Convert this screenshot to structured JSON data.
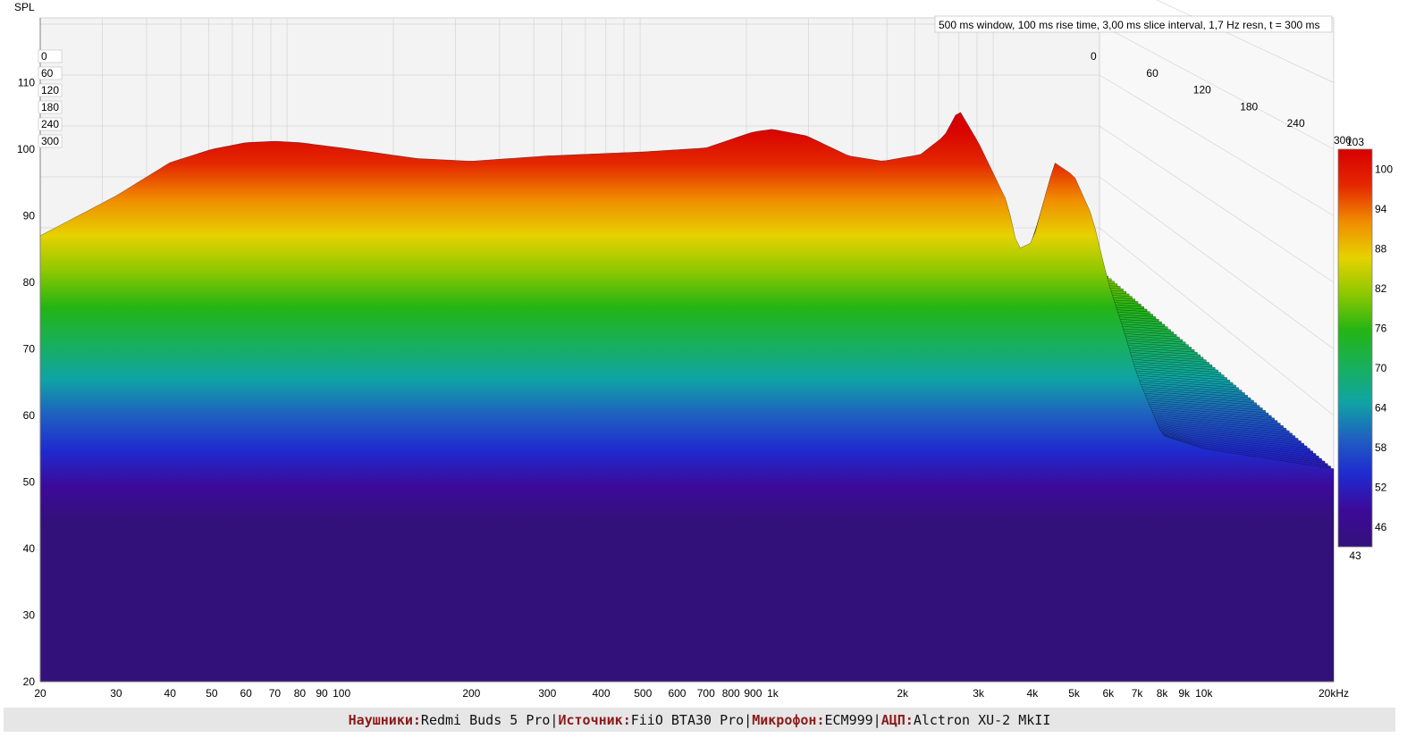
{
  "chart_data": {
    "type": "waterfall",
    "y_label": "SPL",
    "settings_text": "500 ms window, 100 ms rise time, 3,00 ms slice interval, 1,7 Hz resn, t = 300 ms",
    "y_axis": {
      "min": 20,
      "max": 115,
      "ticks": [
        "20",
        "30",
        "40",
        "50",
        "60",
        "70",
        "80",
        "90",
        "100",
        "110"
      ]
    },
    "x_axis": {
      "scale": "log",
      "min": 20,
      "max": 20000,
      "tick_labels": [
        "20",
        "30",
        "40",
        "50",
        "60",
        "70",
        "80",
        "90",
        "100",
        "200",
        "300",
        "400",
        "500",
        "600",
        "700",
        "800",
        "900",
        "1k",
        "2k",
        "3k",
        "4k",
        "5k",
        "6k",
        "7k",
        "8k",
        "9k",
        "10k",
        "20kHz"
      ]
    },
    "time_axis_ms": {
      "min": 0,
      "max": 300,
      "ticks": [
        "0",
        "60",
        "120",
        "180",
        "240",
        "300"
      ]
    },
    "color_scale": {
      "min": 43,
      "max": 103,
      "ticks": [
        "103",
        "100",
        "94",
        "88",
        "82",
        "76",
        "70",
        "64",
        "58",
        "52",
        "46",
        "43"
      ],
      "colors": [
        "#33117a",
        "#3c0a99",
        "#1f2acf",
        "#1f60c0",
        "#0fa4a4",
        "#18b05a",
        "#24b414",
        "#8cc800",
        "#e6d200",
        "#f08c00",
        "#e42800",
        "#d70000"
      ]
    },
    "initial_response": [
      [
        20,
        87
      ],
      [
        30,
        93
      ],
      [
        40,
        98
      ],
      [
        50,
        100
      ],
      [
        60,
        101
      ],
      [
        70,
        101.2
      ],
      [
        80,
        101
      ],
      [
        100,
        100.2
      ],
      [
        150,
        98.6
      ],
      [
        200,
        98.2
      ],
      [
        300,
        99
      ],
      [
        500,
        99.6
      ],
      [
        700,
        100.2
      ],
      [
        900,
        102.6
      ],
      [
        1000,
        103
      ],
      [
        1200,
        102
      ],
      [
        1500,
        99
      ],
      [
        1800,
        98.2
      ],
      [
        2200,
        99.2
      ],
      [
        2500,
        102
      ],
      [
        2700,
        106
      ],
      [
        3000,
        101
      ],
      [
        3500,
        92
      ],
      [
        3700,
        85
      ],
      [
        4000,
        86
      ],
      [
        4500,
        98
      ],
      [
        5000,
        96
      ],
      [
        5500,
        90
      ],
      [
        6000,
        80
      ],
      [
        6500,
        73
      ],
      [
        7000,
        66
      ],
      [
        8000,
        57
      ],
      [
        10000,
        55
      ],
      [
        20000,
        52
      ]
    ],
    "late_response": [
      [
        20,
        42
      ],
      [
        40,
        47
      ],
      [
        60,
        49
      ],
      [
        100,
        49
      ],
      [
        300,
        51
      ],
      [
        1000,
        52
      ],
      [
        3000,
        53
      ],
      [
        10000,
        53
      ],
      [
        20000,
        52
      ]
    ],
    "floor_db": 43
  },
  "footer": {
    "headphones_label": "Наушники:",
    "headphones_value": "Redmi Buds 5 Pro",
    "source_label": "Источник:",
    "source_value": "FiiO BTA30 Pro",
    "mic_label": "Микрофон:",
    "mic_value": "ECM999",
    "adc_label": "АЦП:",
    "adc_value": "Alctron XU-2 MkII",
    "separator": "|"
  }
}
